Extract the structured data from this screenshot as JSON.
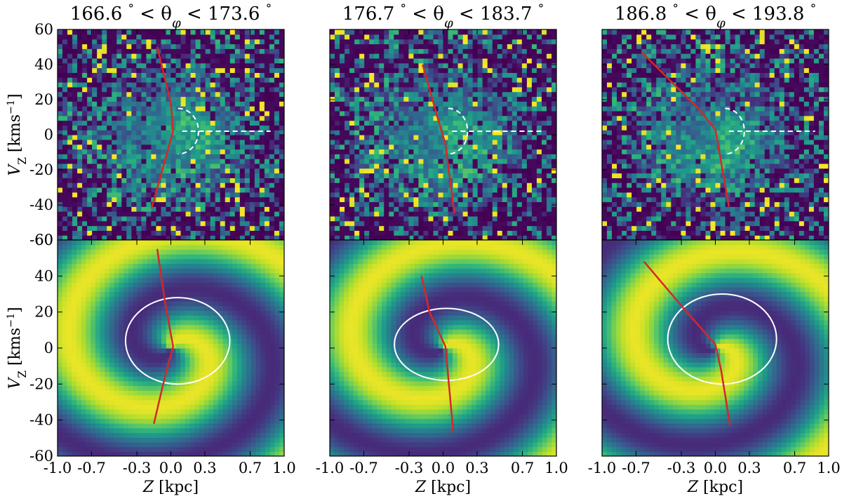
{
  "figure": {
    "colormap": "viridis",
    "spiral_arm_color": "#d62728",
    "contour_color": "#ffffff"
  },
  "chart_data": [
    {
      "type": "heatmap",
      "panel": "observed-left",
      "title": "166.6 ° < θφ < 173.6 °",
      "title_parts": [
        "166.6 ",
        "°",
        " < θ",
        "φ",
        " < 173.6 ",
        "°"
      ],
      "xlabel": "",
      "ylabel_parts": [
        "V",
        "Z",
        " [kms",
        "−1",
        "]"
      ],
      "xlim": [
        -1.0,
        1.0
      ],
      "ylim": [
        -60,
        60
      ],
      "yticks": [
        "60",
        "40",
        "20",
        "0",
        "-20",
        "-40",
        "-60"
      ],
      "red_line": {
        "x": [
          -0.12,
          0.0,
          0.02,
          -0.17
        ],
        "y": [
          50,
          18,
          2,
          -42
        ]
      },
      "dashed_contour": {
        "center": [
          0.1,
          2
        ],
        "rx": 0.18,
        "ry": 13,
        "line_y": 2,
        "line_x_end": 0.88
      }
    },
    {
      "type": "heatmap",
      "panel": "observed-middle",
      "title": "176.7 ° < θφ < 183.7 °",
      "title_parts": [
        "176.7 ",
        "°",
        " < θ",
        "φ",
        " < 183.7 ",
        "°"
      ],
      "xlabel": "",
      "xlim": [
        -1.0,
        1.0
      ],
      "ylim": [
        -60,
        60
      ],
      "red_line": {
        "x": [
          -0.18,
          -0.05,
          0.02,
          0.1
        ],
        "y": [
          40,
          10,
          -5,
          -45
        ]
      },
      "dashed_contour": {
        "center": [
          0.08,
          2
        ],
        "rx": 0.17,
        "ry": 13,
        "line_y": 2,
        "line_x_end": 0.88
      }
    },
    {
      "type": "heatmap",
      "panel": "observed-right",
      "title": "186.8 ° < θφ < 193.8 °",
      "title_parts": [
        "186.8 ",
        "°",
        " < θ",
        "φ",
        " < 193.8 ",
        "°"
      ],
      "xlabel": "",
      "xlim": [
        -1.0,
        1.0
      ],
      "ylim": [
        -60,
        60
      ],
      "red_line": {
        "x": [
          -0.65,
          -0.15,
          0.0,
          0.12
        ],
        "y": [
          47,
          15,
          3,
          -41
        ]
      },
      "dashed_contour": {
        "center": [
          0.12,
          2
        ],
        "rx": 0.17,
        "ry": 13,
        "line_y": 2,
        "line_x_end": 0.88
      }
    },
    {
      "type": "heatmap",
      "panel": "model-left",
      "xlabel_parts": [
        "Z",
        " [kpc]"
      ],
      "ylabel_parts": [
        "V",
        "Z",
        " [kms",
        "−1",
        "]"
      ],
      "xlim": [
        -1.0,
        1.0
      ],
      "ylim": [
        -60,
        60
      ],
      "xticks": [
        "-1.0",
        "-0.7",
        "-0.3",
        "0.0",
        "0.3",
        "0.7",
        "1.0"
      ],
      "yticks": [
        "60",
        "40",
        "20",
        "0",
        "-20",
        "-40",
        "-60"
      ],
      "red_line": {
        "x": [
          -0.12,
          -0.05,
          0.02,
          -0.06,
          -0.15
        ],
        "y": [
          55,
          25,
          1,
          -18,
          -42
        ]
      },
      "white_contour": {
        "center": [
          0.06,
          4
        ],
        "rx": 0.46,
        "ry": 24
      }
    },
    {
      "type": "heatmap",
      "panel": "model-middle",
      "xlabel_parts": [
        "Z",
        " [kpc]"
      ],
      "xlim": [
        -1.0,
        1.0
      ],
      "ylim": [
        -60,
        60
      ],
      "xticks": [
        "-1.0",
        "-0.7",
        "-0.3",
        "0.0",
        "0.3",
        "0.7",
        "1.0"
      ],
      "red_line": {
        "x": [
          -0.19,
          -0.12,
          0.02,
          0.03,
          0.09
        ],
        "y": [
          40,
          20,
          1,
          -5,
          -47
        ]
      },
      "white_contour": {
        "center": [
          0.03,
          2
        ],
        "rx": 0.46,
        "ry": 20
      }
    },
    {
      "type": "heatmap",
      "panel": "model-right",
      "xlabel_parts": [
        "Z",
        " [kpc]"
      ],
      "xlim": [
        -1.0,
        1.0
      ],
      "ylim": [
        -60,
        60
      ],
      "xticks": [
        "-1.0",
        "-0.7",
        "-0.3",
        "0.0",
        "0.3",
        "0.7",
        "1.0"
      ],
      "red_line": {
        "x": [
          -0.63,
          -0.28,
          0.0,
          0.05,
          0.13
        ],
        "y": [
          48,
          22,
          2,
          -12,
          -43
        ]
      },
      "white_contour": {
        "center": [
          0.06,
          5
        ],
        "rx": 0.48,
        "ry": 25
      }
    }
  ]
}
